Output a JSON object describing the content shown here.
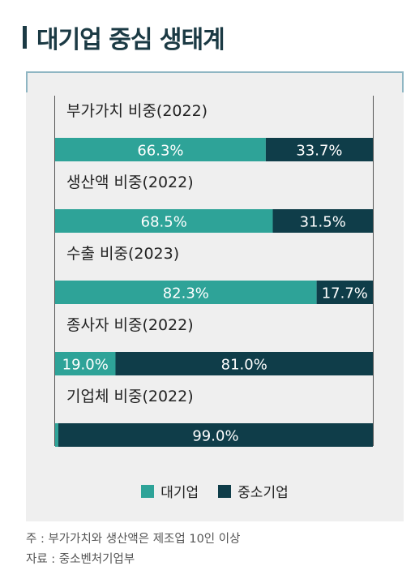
{
  "title": "대기업 중심 생태계",
  "colors": {
    "large": "#2ea398",
    "sme": "#0f3d49"
  },
  "legend": {
    "large": "대기업",
    "sme": "중소기업"
  },
  "notes": {
    "note": "주 : 부가가치와 생산액은 제조업 10인 이상",
    "source": "자료 : 중소벤처기업부"
  },
  "chart_data": {
    "type": "bar",
    "stacked": true,
    "orientation": "horizontal",
    "categories": [
      "부가가치 비중(2022)",
      "생산액 비중(2022)",
      "수출 비중(2023)",
      "종사자 비중(2022)",
      "기업체 비중(2022)"
    ],
    "series": [
      {
        "name": "대기업",
        "values": [
          66.3,
          68.5,
          82.3,
          19.0,
          1.0
        ],
        "labels": [
          "66.3%",
          "68.5%",
          "82.3%",
          "19.0%",
          ""
        ]
      },
      {
        "name": "중소기업",
        "values": [
          33.7,
          31.5,
          17.7,
          81.0,
          99.0
        ],
        "labels": [
          "33.7%",
          "31.5%",
          "17.7%",
          "81.0%",
          "99.0%"
        ]
      }
    ],
    "xlim": [
      0,
      100
    ]
  }
}
